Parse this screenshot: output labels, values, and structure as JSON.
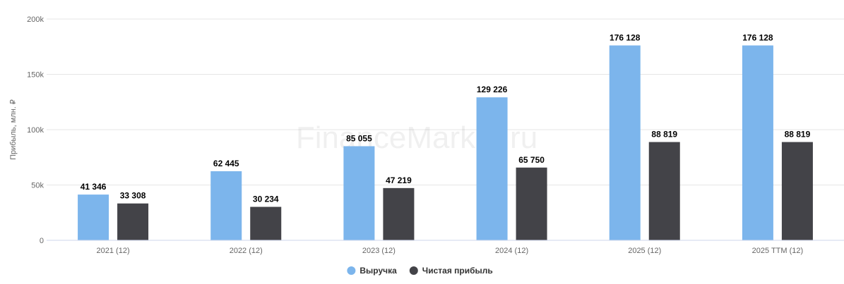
{
  "watermark": "FinanceMarker.ru",
  "chart_data": {
    "type": "bar",
    "categories": [
      "2021 (12)",
      "2022 (12)",
      "2023 (12)",
      "2024 (12)",
      "2025 (12)",
      "2025 TTM (12)"
    ],
    "series": [
      {
        "name": "Выручка",
        "color": "#7cb5ec",
        "values": [
          41346,
          62445,
          85055,
          129226,
          176128,
          176128
        ]
      },
      {
        "name": "Чистая прибыль",
        "color": "#434348",
        "values": [
          33308,
          30234,
          47219,
          65750,
          88819,
          88819
        ]
      }
    ],
    "ylabel": "Прибыль, млн. ₽",
    "ylim": [
      0,
      200000
    ],
    "yticks": [
      0,
      50000,
      100000,
      150000,
      200000
    ],
    "ytick_labels": [
      "0",
      "50k",
      "100k",
      "150k",
      "200k"
    ],
    "data_labels": [
      [
        "41 346",
        "62 445",
        "85 055",
        "129 226",
        "176 128",
        "176 128"
      ],
      [
        "33 308",
        "30 234",
        "47 219",
        "65 750",
        "88 819",
        "88 819"
      ]
    ],
    "grid": true,
    "legend_position": "bottom-center"
  }
}
